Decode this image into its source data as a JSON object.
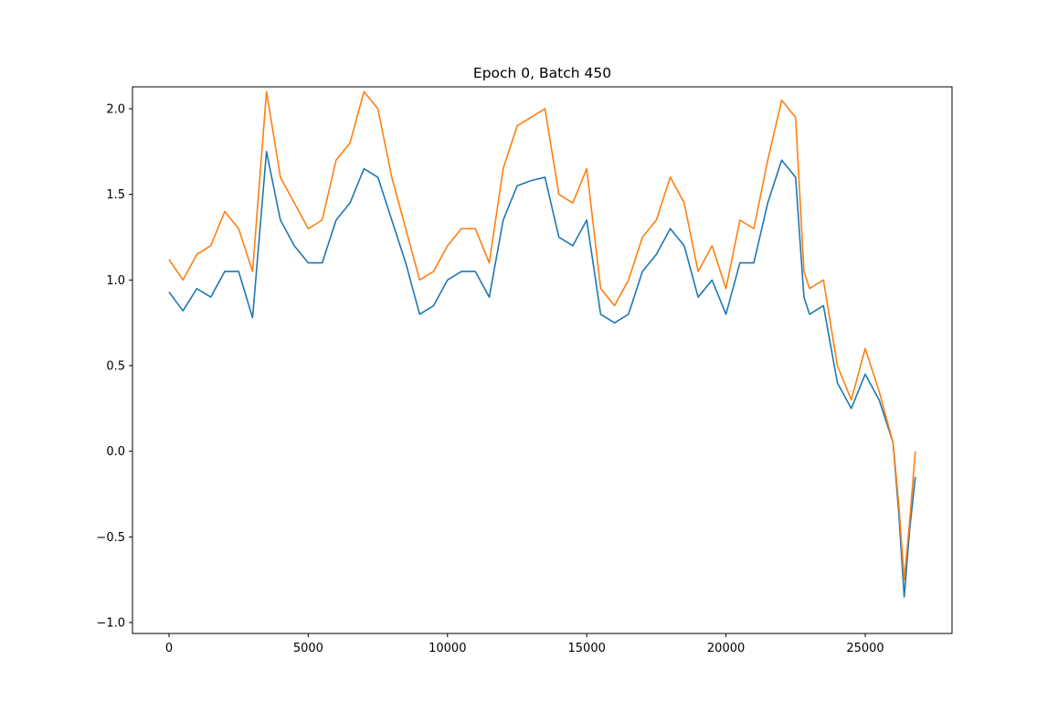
{
  "chart_data": {
    "type": "line",
    "title": "Epoch 0, Batch 450",
    "x": [
      0,
      500,
      1000,
      1500,
      2000,
      2500,
      3000,
      3500,
      4000,
      4500,
      5000,
      5500,
      6000,
      6500,
      7000,
      7500,
      8000,
      8500,
      9000,
      9500,
      10000,
      10500,
      11000,
      11500,
      12000,
      12500,
      13000,
      13500,
      14000,
      14500,
      15000,
      15500,
      16000,
      16500,
      17000,
      17500,
      18000,
      18500,
      19000,
      19500,
      20000,
      20500,
      21000,
      21500,
      22000,
      22500,
      22800,
      23000,
      23500,
      24000,
      24500,
      25000,
      25500,
      26000,
      26200,
      26400,
      26600,
      26800
    ],
    "series": [
      {
        "color": "#1f77b4",
        "values": [
          0.93,
          0.82,
          0.95,
          0.9,
          1.05,
          1.05,
          0.78,
          1.75,
          1.35,
          1.2,
          1.1,
          1.1,
          1.35,
          1.45,
          1.65,
          1.6,
          1.35,
          1.1,
          0.8,
          0.85,
          1.0,
          1.05,
          1.05,
          0.9,
          1.35,
          1.55,
          1.58,
          1.6,
          1.25,
          1.2,
          1.35,
          0.8,
          0.75,
          0.8,
          1.05,
          1.15,
          1.3,
          1.2,
          0.9,
          1.0,
          0.8,
          1.1,
          1.1,
          1.45,
          1.7,
          1.6,
          0.9,
          0.8,
          0.85,
          0.4,
          0.25,
          0.45,
          0.3,
          0.05,
          -0.35,
          -0.85,
          -0.45,
          -0.15
        ]
      },
      {
        "color": "#ff7f0e",
        "values": [
          1.12,
          1.0,
          1.15,
          1.2,
          1.4,
          1.3,
          1.05,
          2.1,
          1.6,
          1.45,
          1.3,
          1.35,
          1.7,
          1.8,
          2.1,
          2.0,
          1.6,
          1.3,
          1.0,
          1.05,
          1.2,
          1.3,
          1.3,
          1.1,
          1.65,
          1.9,
          1.95,
          2.0,
          1.5,
          1.45,
          1.65,
          0.95,
          0.85,
          1.0,
          1.25,
          1.35,
          1.6,
          1.45,
          1.05,
          1.2,
          0.95,
          1.35,
          1.3,
          1.7,
          2.05,
          1.95,
          1.05,
          0.95,
          1.0,
          0.5,
          0.3,
          0.6,
          0.35,
          0.05,
          -0.3,
          -0.75,
          -0.4,
          0.0
        ]
      }
    ],
    "xlim": [
      -1312,
      28117
    ],
    "ylim": [
      -1.064,
      2.128
    ],
    "xticks": [
      0,
      5000,
      10000,
      15000,
      20000,
      25000
    ],
    "yticks": [
      {
        "value": -1.0,
        "label": "−1.0"
      },
      {
        "value": -0.5,
        "label": "−0.5"
      },
      {
        "value": 0.0,
        "label": "0.0"
      },
      {
        "value": 0.5,
        "label": "0.5"
      },
      {
        "value": 1.0,
        "label": "1.0"
      },
      {
        "value": 1.5,
        "label": "1.5"
      },
      {
        "value": 2.0,
        "label": "2.0"
      }
    ]
  }
}
